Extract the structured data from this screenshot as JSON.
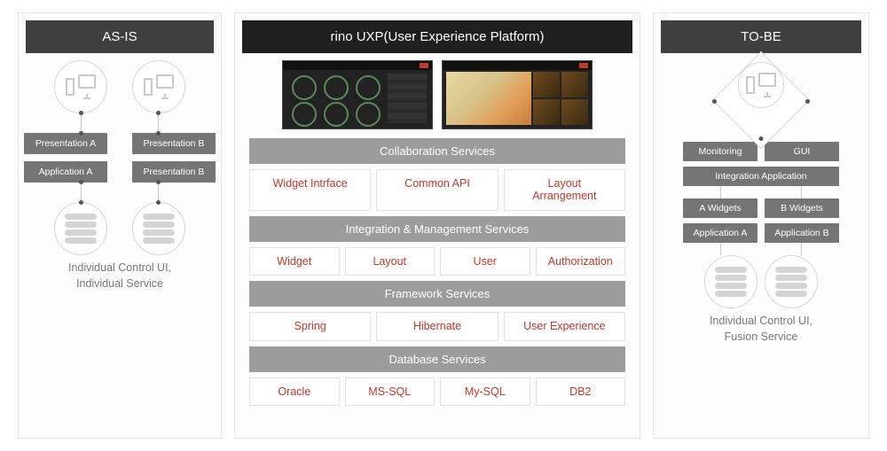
{
  "colors": {
    "panel_border": "#e4e4e4",
    "title_dark": "#3f3f3f",
    "title_black": "#1f1f1f",
    "chip_bg": "#757575",
    "section_head": "#9c9c9c",
    "accent_red": "#c0392b",
    "icon_grey": "#c9c9c9",
    "caption": "#777777"
  },
  "left": {
    "title": "AS-IS",
    "presentation_a": "Presentation A",
    "presentation_b": "Presentation B",
    "application_a": "Application A",
    "application_b_dup": "Presentation B",
    "caption_line1": "Individual Control UI,",
    "caption_line2": "Individual Service"
  },
  "mid": {
    "title": "rino UXP(User Experience Platform)",
    "sections": {
      "collab": {
        "head": "Collaboration Services",
        "cells": [
          "Widget Intrface",
          "Common API",
          "Layout\nArrangement"
        ]
      },
      "integ": {
        "head": "Integration & Management Services",
        "cells": [
          "Widget",
          "Layout",
          "User",
          "Authorization"
        ]
      },
      "framework": {
        "head": "Framework Services",
        "cells": [
          "Spring",
          "Hibernate",
          "User Experience"
        ]
      },
      "db": {
        "head": "Database Services",
        "cells": [
          "Oracle",
          "MS-SQL",
          "My-SQL",
          "DB2"
        ]
      }
    }
  },
  "right": {
    "title": "TO-BE",
    "monitoring": "Monitoring",
    "gui": "GUI",
    "integration_app": "Integration Application",
    "a_widgets": "A Widgets",
    "b_widgets": "B Widgets",
    "application_a": "Application A",
    "application_b": "Application B",
    "caption_line1": "Individual Control UI,",
    "caption_line2": "Fusion Service"
  }
}
